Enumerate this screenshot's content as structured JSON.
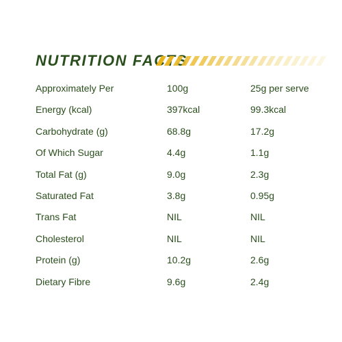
{
  "title": "NUTRITION FACTS",
  "colors": {
    "text": "#2a4e1c",
    "stripe_start": "#e9b31a",
    "stripe_end": "#f7eec4"
  },
  "rows": [
    {
      "label": "Approximately Per",
      "per_100g": "100g",
      "per_serve": "25g per serve"
    },
    {
      "label": "Energy (kcal)",
      "per_100g": "397kcal",
      "per_serve": "99.3kcal"
    },
    {
      "label": "Carbohydrate (g)",
      "per_100g": "68.8g",
      "per_serve": "17.2g"
    },
    {
      "label": "Of Which Sugar",
      "per_100g": "4.4g",
      "per_serve": "1.1g"
    },
    {
      "label": "Total Fat (g)",
      "per_100g": "9.0g",
      "per_serve": "2.3g"
    },
    {
      "label": "Saturated Fat",
      "per_100g": "3.8g",
      "per_serve": "0.95g"
    },
    {
      "label": "Trans Fat",
      "per_100g": "NIL",
      "per_serve": "NIL"
    },
    {
      "label": "Cholesterol",
      "per_100g": "NIL",
      "per_serve": "NIL"
    },
    {
      "label": "Protein (g)",
      "per_100g": "10.2g",
      "per_serve": "2.6g"
    },
    {
      "label": "Dietary Fibre",
      "per_100g": "9.6g",
      "per_serve": "2.4g"
    }
  ]
}
